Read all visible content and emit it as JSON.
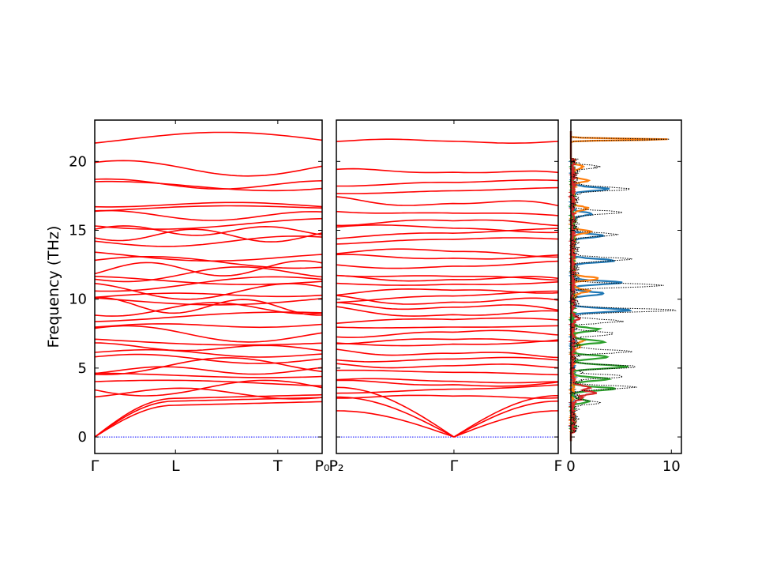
{
  "chart_data": [
    {
      "type": "line",
      "panel": "band-structure-segment-1",
      "ylabel": "Frequency (THz)",
      "ylim": [
        -1.2,
        23
      ],
      "yticks": [
        0,
        5,
        10,
        15,
        20
      ],
      "xticks": [
        "Γ",
        "L",
        "T",
        "P₀"
      ],
      "series_color": "#ff0000",
      "zero_line_color": "#0000ff",
      "band_flat_levels": [
        21.6,
        19.5,
        18.1,
        18.4,
        16.9,
        16.5,
        16.1,
        15.6,
        15.0,
        14.7,
        14.1,
        13.2,
        12.6,
        12.1,
        11.7,
        11.4,
        11.0,
        10.6,
        10.2,
        9.9,
        9.6,
        9.2,
        8.6,
        8.0,
        7.6,
        7.0,
        6.6,
        6.2,
        5.7,
        5.1,
        4.8,
        4.4,
        4.0,
        3.6,
        3.2
      ],
      "acoustic_branches_end": [
        2.3,
        2.6,
        2.8
      ]
    },
    {
      "type": "line",
      "panel": "band-structure-segment-2",
      "ylim": [
        -1.2,
        23
      ],
      "xticks": [
        "P₂",
        "Γ",
        "F"
      ],
      "series_color": "#ff0000",
      "zero_line_color": "#0000ff",
      "band_flat_levels": [
        21.6,
        19.3,
        18.5,
        17.8,
        17.0,
        16.4,
        15.7,
        15.3,
        14.8,
        14.2,
        13.6,
        13.0,
        12.3,
        11.8,
        11.4,
        11.0,
        10.6,
        10.2,
        9.8,
        9.4,
        9.0,
        8.5,
        8.0,
        7.5,
        7.0,
        6.6,
        6.1,
        5.6,
        5.1,
        4.7,
        4.2,
        3.8,
        3.4,
        3.0
      ],
      "acoustic_branches_end": [
        1.9,
        2.6,
        3.0
      ]
    },
    {
      "type": "area",
      "panel": "phonon-dos",
      "xlim": [
        0,
        11
      ],
      "ylim": [
        -1.2,
        23
      ],
      "xticks": [
        0,
        10
      ],
      "series": [
        {
          "color": "#1f77b4",
          "peaks": [
            [
              9.2,
              5.8
            ],
            [
              10.4,
              3.2
            ],
            [
              11.2,
              4.8
            ],
            [
              12.8,
              4.1
            ],
            [
              14.6,
              3.0
            ],
            [
              18.0,
              3.5
            ],
            [
              16.2,
              2.0
            ]
          ]
        },
        {
          "color": "#ff7f0e",
          "peaks": [
            [
              21.6,
              9.8
            ],
            [
              11.5,
              2.5
            ],
            [
              10.6,
              1.6
            ],
            [
              14.9,
              1.8
            ],
            [
              16.6,
              1.5
            ],
            [
              18.6,
              1.4
            ],
            [
              19.6,
              1.0
            ],
            [
              7.0,
              1.2
            ],
            [
              6.6,
              0.8
            ]
          ]
        },
        {
          "color": "#2ca02c",
          "peaks": [
            [
              3.5,
              4.2
            ],
            [
              4.2,
              3.6
            ],
            [
              5.1,
              5.4
            ],
            [
              5.8,
              3.5
            ],
            [
              6.9,
              3.0
            ],
            [
              7.8,
              2.6
            ],
            [
              2.6,
              1.6
            ]
          ]
        },
        {
          "color": "#d62728",
          "peaks": [
            [
              3.2,
              2.2
            ],
            [
              3.6,
              1.6
            ],
            [
              2.8,
              0.9
            ],
            [
              8.6,
              0.6
            ]
          ]
        },
        {
          "color": "#000000",
          "style": "dotted",
          "peaks": [
            [
              21.6,
              10.0
            ],
            [
              9.2,
              10.2
            ],
            [
              11.0,
              9.0
            ],
            [
              12.9,
              5.5
            ],
            [
              18.0,
              5.8
            ],
            [
              5.1,
              6.2
            ],
            [
              3.6,
              6.0
            ],
            [
              16.3,
              4.4
            ],
            [
              14.7,
              4.0
            ],
            [
              7.5,
              4.2
            ],
            [
              4.4,
              5.0
            ],
            [
              6.2,
              5.4
            ],
            [
              8.4,
              4.6
            ],
            [
              2.5,
              2.5
            ],
            [
              19.6,
              2.2
            ]
          ]
        }
      ]
    }
  ]
}
